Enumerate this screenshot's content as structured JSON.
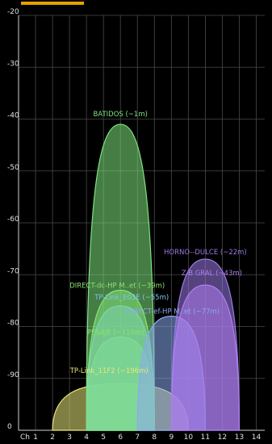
{
  "chart_data": {
    "type": "area",
    "title": "",
    "xlabel": "Ch",
    "ylabel": "",
    "x_ticks": [
      "1",
      "2",
      "3",
      "4",
      "5",
      "6",
      "7",
      "8",
      "9",
      "10",
      "11",
      "12",
      "13",
      "14"
    ],
    "y_ticks": [
      "-20",
      "-30",
      "-40",
      "-50",
      "-60",
      "-70",
      "-80",
      "-90",
      "0"
    ],
    "xlim": [
      0,
      14
    ],
    "ylim": [
      -100,
      -20
    ],
    "grid": true,
    "series": [
      {
        "name": "TP-Link_11F2 (~196m)",
        "channel": 6,
        "width": 4,
        "signal": -91,
        "color": "#e8e67a"
      },
      {
        "name": "PESAJE (~110m)",
        "channel": 6,
        "width": 2,
        "signal": -82,
        "color": "#8de36f"
      },
      {
        "name": "DIRECT-dc-HP M..et (~39m)",
        "channel": 6,
        "width": 2,
        "signal": -73,
        "color": "#8de36f"
      },
      {
        "name": "TP-Link_E03E (~55m)",
        "channel": 6,
        "width": 2,
        "signal": -76,
        "color": "#7ec4ef"
      },
      {
        "name": "BATIDOS (~1m)",
        "channel": 6,
        "width": 2,
        "signal": -41,
        "color": "#7ee37e"
      },
      {
        "name": "DIRECT-ef-HP M..et (~77m)",
        "channel": 9,
        "width": 2,
        "signal": -78,
        "color": "#8aaaf0"
      },
      {
        "name": "HORNO--DULCE (~22m)",
        "channel": 11,
        "width": 2,
        "signal": -67,
        "color": "#9a7ae8"
      },
      {
        "name": "Z-B GRAL (~43m)",
        "channel": 11,
        "width": 2,
        "signal": -72,
        "color": "#b07ef0"
      }
    ]
  }
}
